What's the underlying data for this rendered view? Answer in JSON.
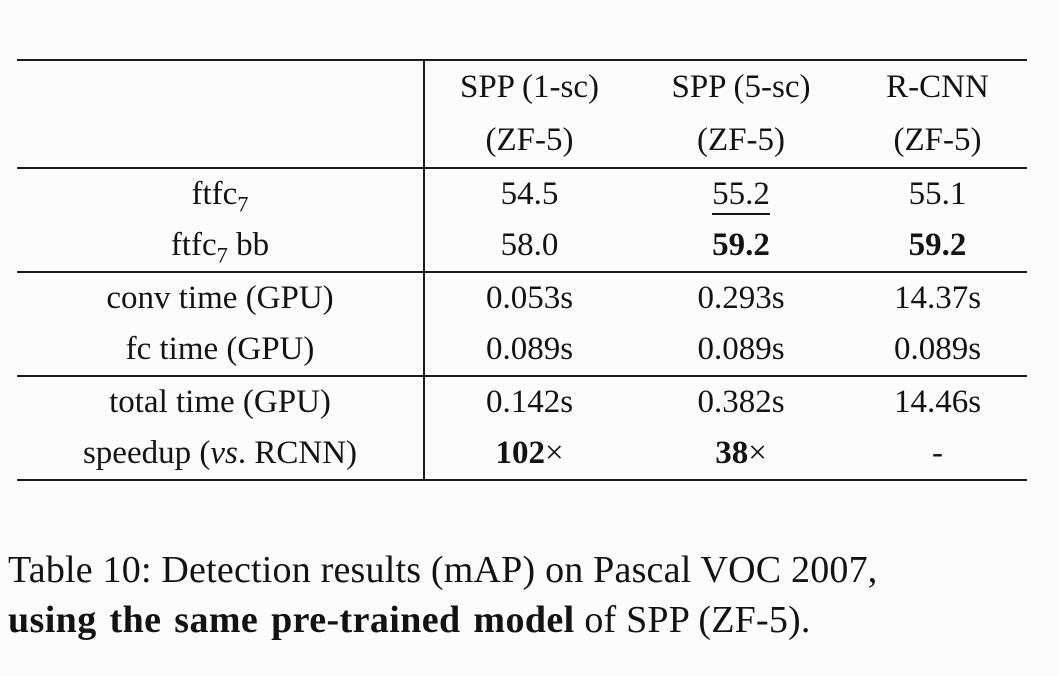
{
  "page": {
    "background": "#fcfcfc",
    "text_color": "#131313",
    "rule_color": "#1c1c1c"
  },
  "table": {
    "header": [
      {
        "line1": "",
        "line2": ""
      },
      {
        "line1": "SPP (1-sc)",
        "line2": "(ZF-5)"
      },
      {
        "line1": "SPP (5-sc)",
        "line2": "(ZF-5)"
      },
      {
        "line1": "R-CNN",
        "line2": "(ZF-5)"
      }
    ],
    "groups": [
      {
        "rows": [
          {
            "label": [
              {
                "t": "ftfc"
              },
              {
                "t": "7",
                "sub": true
              }
            ],
            "cells": [
              [
                {
                  "t": "54.5"
                }
              ],
              [
                {
                  "t": "55.2",
                  "underline": true
                }
              ],
              [
                {
                  "t": "55.1"
                }
              ]
            ]
          },
          {
            "label": [
              {
                "t": "ftfc"
              },
              {
                "t": "7",
                "sub": true
              },
              {
                "t": " bb"
              }
            ],
            "cells": [
              [
                {
                  "t": "58.0"
                }
              ],
              [
                {
                  "t": "59.2",
                  "bold": true
                }
              ],
              [
                {
                  "t": "59.2",
                  "bold": true
                }
              ]
            ]
          }
        ]
      },
      {
        "rows": [
          {
            "label": [
              {
                "t": "conv time (GPU)"
              }
            ],
            "cells": [
              [
                {
                  "t": "0.053s"
                }
              ],
              [
                {
                  "t": "0.293s"
                }
              ],
              [
                {
                  "t": "14.37s"
                }
              ]
            ]
          },
          {
            "label": [
              {
                "t": "fc time (GPU)"
              }
            ],
            "cells": [
              [
                {
                  "t": "0.089s"
                }
              ],
              [
                {
                  "t": "0.089s"
                }
              ],
              [
                {
                  "t": "0.089s"
                }
              ]
            ]
          }
        ]
      },
      {
        "rows": [
          {
            "label": [
              {
                "t": "total time (GPU)"
              }
            ],
            "cells": [
              [
                {
                  "t": "0.142s"
                }
              ],
              [
                {
                  "t": "0.382s"
                }
              ],
              [
                {
                  "t": "14.46s"
                }
              ]
            ]
          },
          {
            "label": [
              {
                "t": "speedup ("
              },
              {
                "t": "vs",
                "italic": true
              },
              {
                "t": ". RCNN)"
              }
            ],
            "cells": [
              [
                {
                  "t": "102",
                  "bold": true
                },
                {
                  "t": "×"
                }
              ],
              [
                {
                  "t": "38",
                  "bold": true
                },
                {
                  "t": "×"
                }
              ],
              [
                {
                  "t": "-"
                }
              ]
            ]
          }
        ]
      }
    ]
  },
  "caption": {
    "seg1": "Table 10: Detection results (mAP) on Pascal VOC 2007,",
    "seg2_bold": "using the same pre-trained model",
    "seg3": " of SPP (ZF-5)."
  }
}
